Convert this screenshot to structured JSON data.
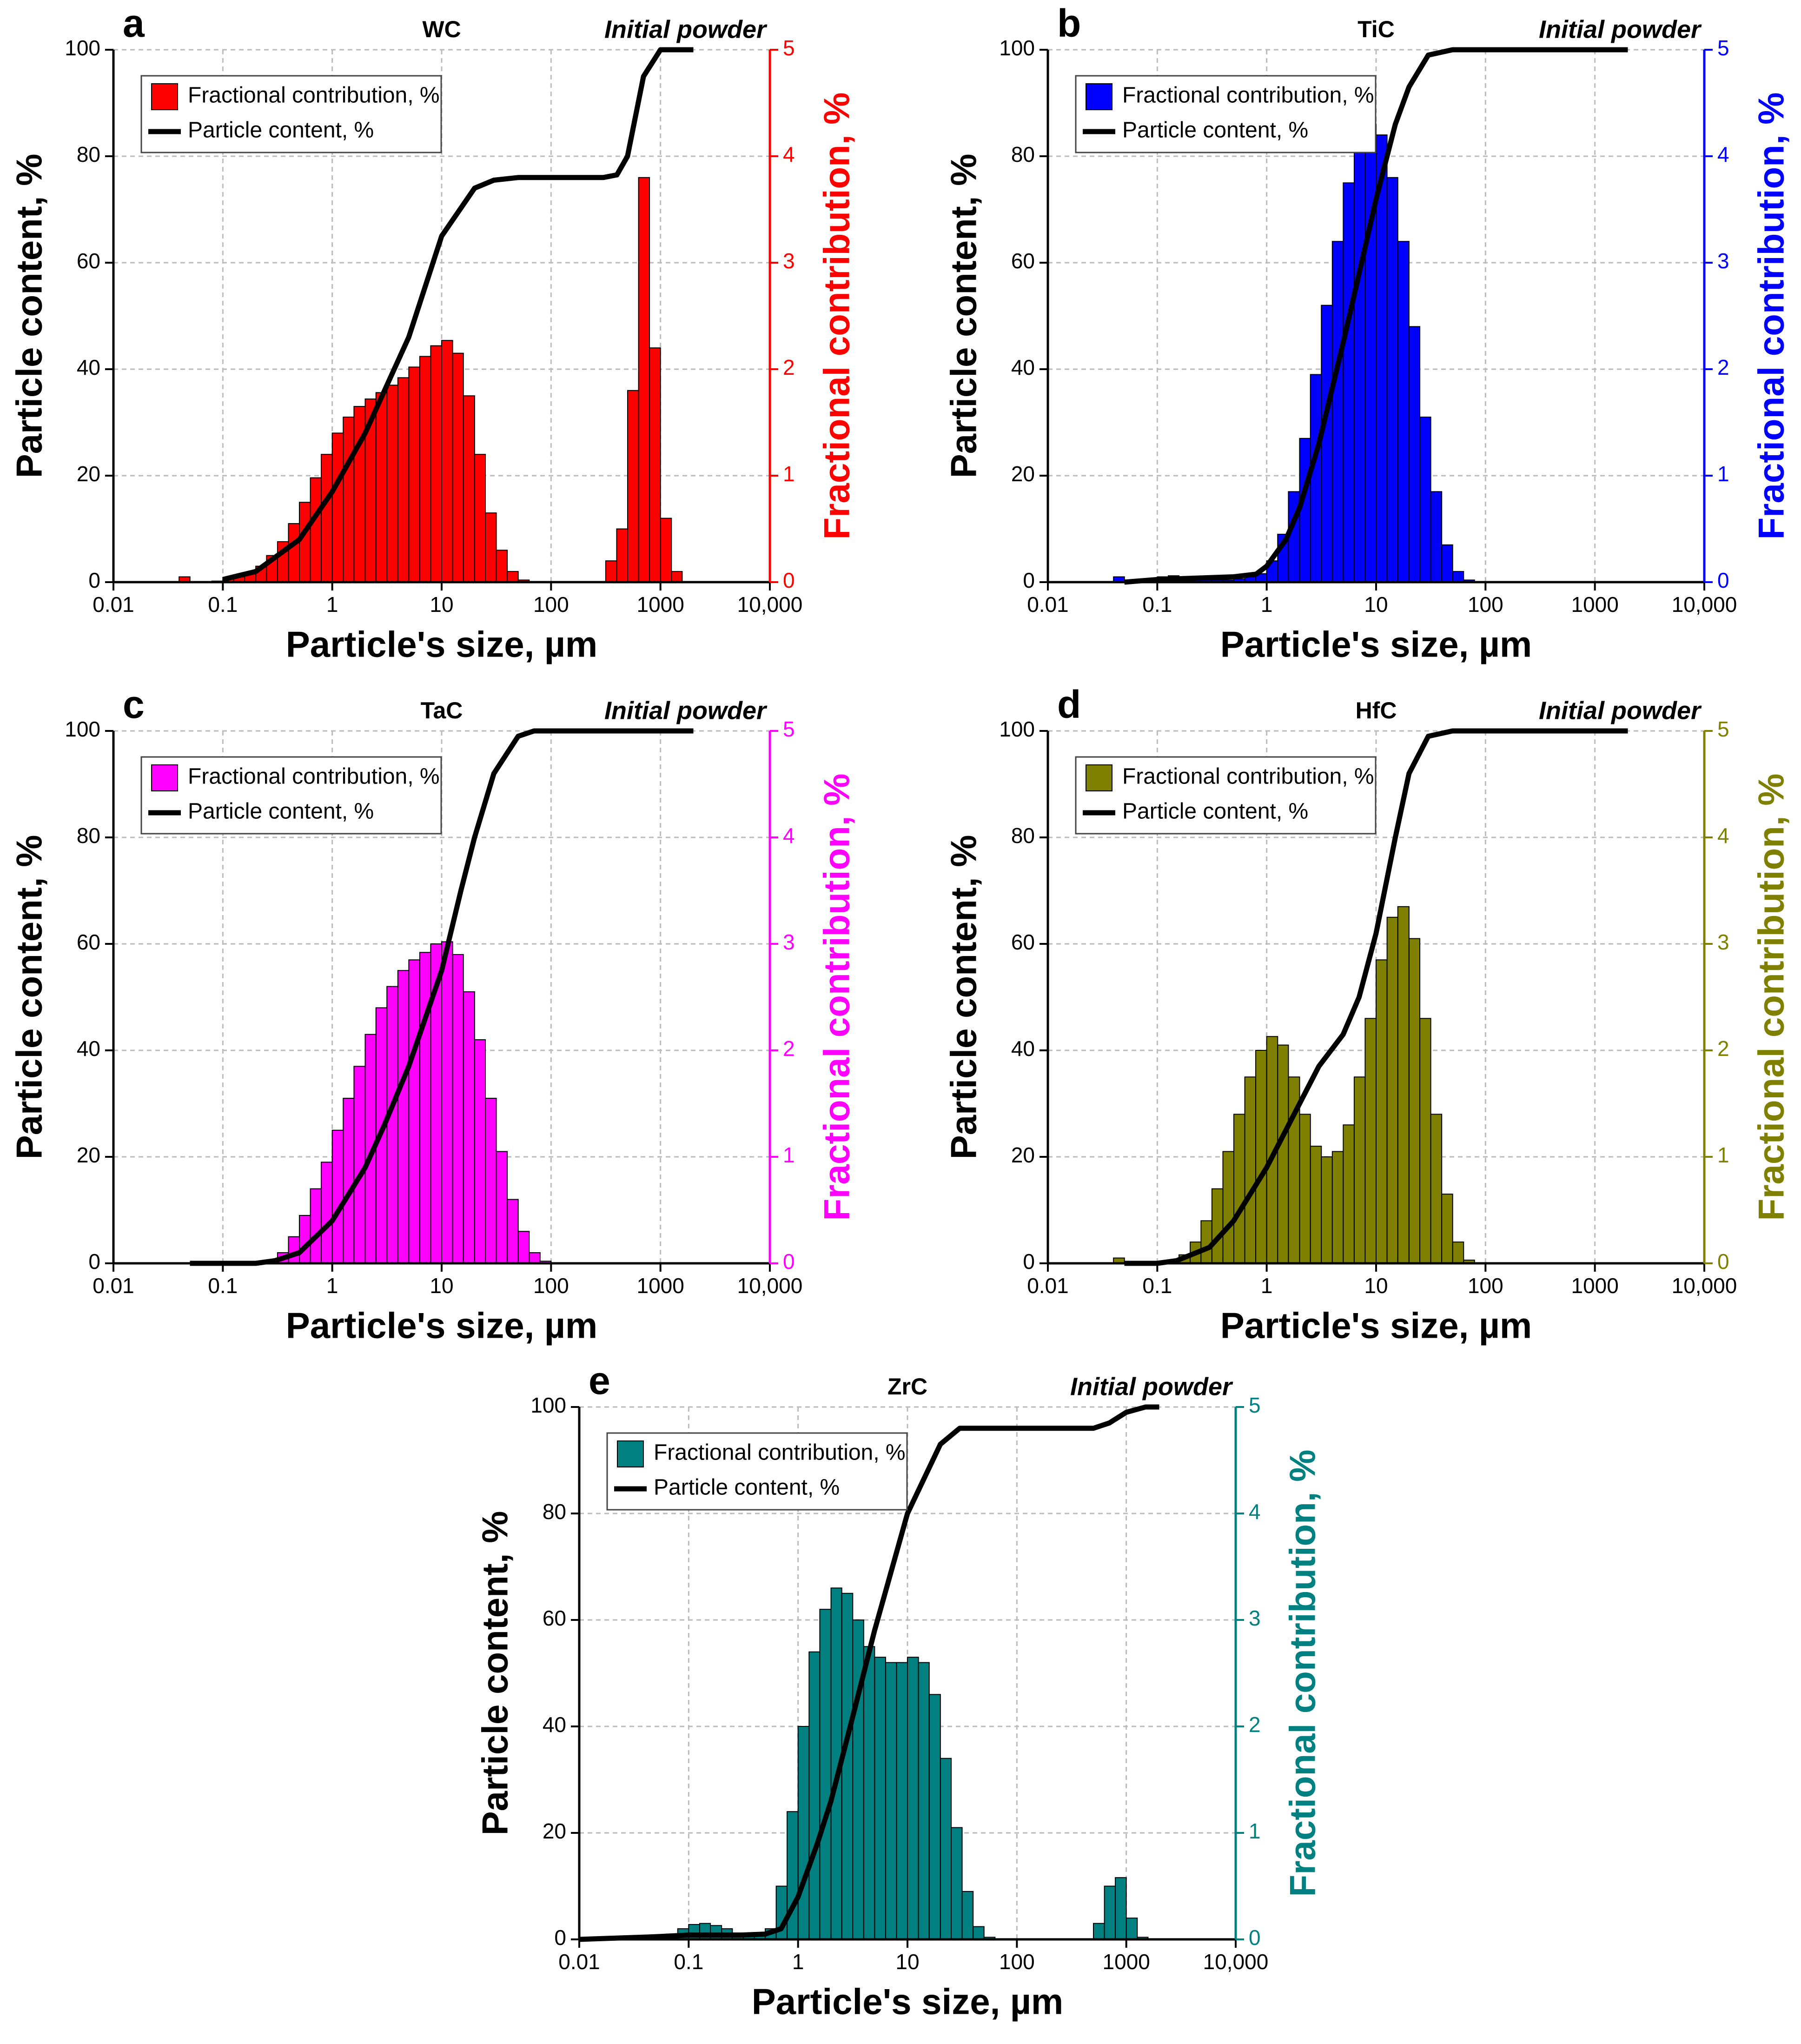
{
  "chart_data": [
    {
      "type": "histogram",
      "panel": "a",
      "title": "WC",
      "annotation": "Initial powder",
      "x_label": "Particle's size, µm",
      "y_label": "Particle content, %",
      "y2_label": "Fractional contribution, %",
      "xscale": "log",
      "grid": true,
      "legend": "upper left",
      "xlim": [
        0.01,
        10000
      ],
      "xticks": [
        0.01,
        0.1,
        1,
        10,
        100,
        1000,
        {
          "value": 10000,
          "label": "10,000"
        }
      ],
      "ylim": [
        0,
        100
      ],
      "yticks": [
        0,
        20,
        40,
        60,
        80,
        100
      ],
      "y2lim": [
        0,
        5
      ],
      "y2ticks": [
        0,
        1,
        2,
        3,
        4,
        5
      ],
      "series": [
        {
          "name": "Fractional contribution, %",
          "color": "#ff0000",
          "axis": "y2",
          "bins": [
            0.0398,
            0.0501,
            0.0631,
            0.0794,
            0.1,
            0.126,
            0.158,
            0.2,
            0.251,
            0.316,
            0.398,
            0.501,
            0.631,
            0.794,
            1,
            1.26,
            1.58,
            2,
            2.51,
            3.16,
            3.98,
            5.01,
            6.31,
            7.94,
            10,
            12.6,
            15.8,
            20,
            25.1,
            31.6,
            39.8,
            50.1,
            63.1,
            79.4,
            100,
            126,
            158,
            200,
            251,
            316,
            398,
            501,
            631,
            794,
            1000,
            1260,
            1580
          ],
          "values": [
            0.05,
            0,
            0,
            0.01,
            0.03,
            0.05,
            0.09,
            0.15,
            0.25,
            0.38,
            0.55,
            0.75,
            0.98,
            1.2,
            1.4,
            1.55,
            1.65,
            1.72,
            1.78,
            1.85,
            1.92,
            2.02,
            2.12,
            2.22,
            2.27,
            2.15,
            1.75,
            1.2,
            0.65,
            0.3,
            0.1,
            0.02,
            0,
            0,
            0,
            0,
            0,
            0,
            0,
            0.2,
            0.5,
            1.8,
            3.8,
            2.2,
            0.6,
            0.1
          ]
        },
        {
          "name": "Particle content, %",
          "color": "#000000",
          "type": "line",
          "x": [
            0.1,
            0.2,
            0.5,
            1,
            2,
            5,
            10,
            20,
            30,
            50,
            100,
            200,
            300,
            400,
            500,
            700,
            1000,
            1300,
            2000
          ],
          "values": [
            0.5,
            2,
            8,
            17,
            28,
            46,
            65,
            74,
            75.5,
            76,
            76,
            76,
            76,
            76.5,
            80,
            95,
            100,
            100,
            100
          ]
        }
      ]
    },
    {
      "type": "histogram",
      "panel": "b",
      "title": "TiC",
      "annotation": "Initial powder",
      "x_label": "Particle's size, µm",
      "y_label": "Particle content, %",
      "y2_label": "Fractional contribution, %",
      "xscale": "log",
      "grid": true,
      "legend": "upper left",
      "xlim": [
        0.01,
        10000
      ],
      "xticks": [
        0.01,
        0.1,
        1,
        10,
        100,
        1000,
        {
          "value": 10000,
          "label": "10,000"
        }
      ],
      "ylim": [
        0,
        100
      ],
      "yticks": [
        0,
        20,
        40,
        60,
        80,
        100
      ],
      "y2lim": [
        0,
        5
      ],
      "y2ticks": [
        0,
        1,
        2,
        3,
        4,
        5
      ],
      "series": [
        {
          "name": "Fractional contribution, %",
          "color": "#0000ff",
          "axis": "y2",
          "bins": [
            0.0398,
            0.0501,
            0.0631,
            0.0794,
            0.1,
            0.126,
            0.158,
            0.2,
            0.251,
            0.316,
            0.398,
            0.501,
            0.631,
            0.794,
            1,
            1.26,
            1.58,
            2,
            2.51,
            3.16,
            3.98,
            5.01,
            6.31,
            7.94,
            10,
            12.6,
            15.8,
            20,
            25.1,
            31.6,
            39.8,
            50.1,
            63.1,
            79.4
          ],
          "values": [
            0.05,
            0,
            0,
            0.02,
            0.05,
            0.06,
            0.05,
            0.03,
            0.02,
            0.02,
            0.02,
            0.03,
            0.05,
            0.08,
            0.2,
            0.45,
            0.85,
            1.35,
            1.95,
            2.6,
            3.2,
            3.75,
            4.15,
            4.3,
            4.2,
            3.8,
            3.2,
            2.4,
            1.55,
            0.85,
            0.35,
            0.1,
            0.02
          ]
        },
        {
          "name": "Particle content, %",
          "color": "#000000",
          "type": "line",
          "x": [
            0.05,
            0.1,
            0.5,
            0.8,
            1,
            1.5,
            2,
            3,
            5,
            7,
            10,
            15,
            20,
            30,
            50,
            100,
            200,
            2000
          ],
          "values": [
            0,
            0.5,
            1,
            1.5,
            3,
            8,
            14,
            26,
            45,
            58,
            72,
            86,
            93,
            99,
            100,
            100,
            100,
            100
          ]
        }
      ]
    },
    {
      "type": "histogram",
      "panel": "c",
      "title": "TaC",
      "annotation": "Initial powder",
      "x_label": "Particle's size, µm",
      "y_label": "Particle content, %",
      "y2_label": "Fractional contribution, %",
      "xscale": "log",
      "grid": true,
      "legend": "upper left",
      "xlim": [
        0.01,
        10000
      ],
      "xticks": [
        0.01,
        0.1,
        1,
        10,
        100,
        1000,
        {
          "value": 10000,
          "label": "10,000"
        }
      ],
      "ylim": [
        0,
        100
      ],
      "yticks": [
        0,
        20,
        40,
        60,
        80,
        100
      ],
      "y2lim": [
        0,
        5
      ],
      "y2ticks": [
        0,
        1,
        2,
        3,
        4,
        5
      ],
      "series": [
        {
          "name": "Fractional contribution, %",
          "color": "#ff00ff",
          "axis": "y2",
          "bins": [
            0.251,
            0.316,
            0.398,
            0.501,
            0.631,
            0.794,
            1,
            1.26,
            1.58,
            2,
            2.51,
            3.16,
            3.98,
            5.01,
            6.31,
            7.94,
            10,
            12.6,
            15.8,
            20,
            25.1,
            31.6,
            39.8,
            50.1,
            63.1,
            79.4,
            100
          ],
          "values": [
            0.02,
            0.1,
            0.25,
            0.45,
            0.7,
            0.95,
            1.25,
            1.55,
            1.85,
            2.15,
            2.4,
            2.6,
            2.75,
            2.85,
            2.92,
            3.0,
            3.02,
            2.9,
            2.55,
            2.1,
            1.55,
            1.05,
            0.6,
            0.3,
            0.1,
            0.02
          ]
        },
        {
          "name": "Particle content, %",
          "color": "#000000",
          "type": "line",
          "x": [
            0.05,
            0.2,
            0.3,
            0.5,
            1,
            2,
            3,
            5,
            10,
            15,
            20,
            30,
            50,
            70,
            100,
            2000
          ],
          "values": [
            0,
            0,
            0.5,
            2,
            8,
            18,
            26,
            37,
            55,
            70,
            80,
            92,
            99,
            100,
            100,
            100
          ]
        }
      ]
    },
    {
      "type": "histogram",
      "panel": "d",
      "title": "HfC",
      "annotation": "Initial powder",
      "x_label": "Particle's size, µm",
      "y_label": "Particle content, %",
      "y2_label": "Fractional contribution, %",
      "xscale": "log",
      "grid": true,
      "legend": "upper left",
      "xlim": [
        0.01,
        10000
      ],
      "xticks": [
        0.01,
        0.1,
        1,
        10,
        100,
        1000,
        {
          "value": 10000,
          "label": "10,000"
        }
      ],
      "ylim": [
        0,
        100
      ],
      "yticks": [
        0,
        20,
        40,
        60,
        80,
        100
      ],
      "y2lim": [
        0,
        5
      ],
      "y2ticks": [
        0,
        1,
        2,
        3,
        4,
        5
      ],
      "series": [
        {
          "name": "Fractional contribution, %",
          "color": "#808000",
          "axis": "y2",
          "bins": [
            0.0398,
            0.0501,
            0.0631,
            0.0794,
            0.1,
            0.126,
            0.158,
            0.2,
            0.251,
            0.316,
            0.398,
            0.501,
            0.631,
            0.794,
            1,
            1.26,
            1.58,
            2,
            2.51,
            3.16,
            3.98,
            5.01,
            6.31,
            7.94,
            10,
            12.6,
            15.8,
            20,
            25.1,
            31.6,
            39.8,
            50.1,
            63.1,
            79.4
          ],
          "values": [
            0.05,
            0,
            0,
            0,
            0,
            0.02,
            0.08,
            0.2,
            0.4,
            0.7,
            1.05,
            1.4,
            1.75,
            2.0,
            2.13,
            2.05,
            1.75,
            1.4,
            1.1,
            1.0,
            1.05,
            1.3,
            1.75,
            2.3,
            2.85,
            3.25,
            3.35,
            3.05,
            2.3,
            1.4,
            0.65,
            0.2,
            0.03
          ]
        },
        {
          "name": "Particle content, %",
          "color": "#000000",
          "type": "line",
          "x": [
            0.05,
            0.1,
            0.15,
            0.3,
            0.5,
            1,
            2,
            3,
            5,
            7,
            10,
            15,
            20,
            30,
            50,
            70,
            100,
            2000
          ],
          "values": [
            0,
            0,
            0.5,
            3,
            8,
            18,
            30,
            37,
            43,
            50,
            62,
            80,
            92,
            99,
            100,
            100,
            100,
            100
          ]
        }
      ]
    },
    {
      "type": "histogram",
      "panel": "e",
      "title": "ZrC",
      "annotation": "Initial powder",
      "x_label": "Particle's size, µm",
      "y_label": "Particle content, %",
      "y2_label": "Fractional contribution, %",
      "xscale": "log",
      "grid": true,
      "legend": "upper left",
      "xlim": [
        0.01,
        10000
      ],
      "xticks": [
        0.01,
        0.1,
        1,
        10,
        100,
        1000,
        {
          "value": 10000,
          "label": "10,000"
        }
      ],
      "ylim": [
        0,
        100
      ],
      "yticks": [
        0,
        20,
        40,
        60,
        80,
        100
      ],
      "y2lim": [
        0,
        5
      ],
      "y2ticks": [
        0,
        1,
        2,
        3,
        4,
        5
      ],
      "series": [
        {
          "name": "Fractional contribution, %",
          "color": "#008080",
          "axis": "y2",
          "bins": [
            0.0398,
            0.0501,
            0.0631,
            0.0794,
            0.1,
            0.126,
            0.158,
            0.2,
            0.251,
            0.316,
            0.398,
            0.501,
            0.631,
            0.794,
            1,
            1.26,
            1.58,
            2,
            2.51,
            3.16,
            3.98,
            5.01,
            6.31,
            7.94,
            10,
            12.6,
            15.8,
            20,
            25.1,
            31.6,
            39.8,
            50.1,
            63.1,
            79.4,
            100,
            126,
            158,
            200,
            251,
            316,
            398,
            501,
            631,
            794,
            1000,
            1260,
            1580
          ],
          "values": [
            0.01,
            0.02,
            0.05,
            0.1,
            0.14,
            0.15,
            0.13,
            0.1,
            0.06,
            0.03,
            0.03,
            0.1,
            0.5,
            1.2,
            2.0,
            2.7,
            3.1,
            3.3,
            3.25,
            3.0,
            2.75,
            2.65,
            2.6,
            2.6,
            2.65,
            2.6,
            2.3,
            1.7,
            1.05,
            0.45,
            0.12,
            0.02,
            0,
            0,
            0,
            0,
            0,
            0,
            0,
            0,
            0,
            0.15,
            0.5,
            0.58,
            0.2,
            0.02
          ]
        },
        {
          "name": "Particle content, %",
          "color": "#000000",
          "type": "line",
          "x": [
            0.01,
            0.05,
            0.1,
            0.3,
            0.5,
            0.7,
            1,
            1.5,
            2,
            3,
            5,
            10,
            20,
            30,
            50,
            100,
            300,
            500,
            700,
            1000,
            1500,
            2000
          ],
          "values": [
            0,
            0.5,
            0.8,
            0.8,
            1,
            2,
            8,
            18,
            26,
            40,
            58,
            80,
            93,
            96,
            96,
            96,
            96,
            96,
            97,
            99,
            100,
            100
          ]
        }
      ]
    }
  ]
}
